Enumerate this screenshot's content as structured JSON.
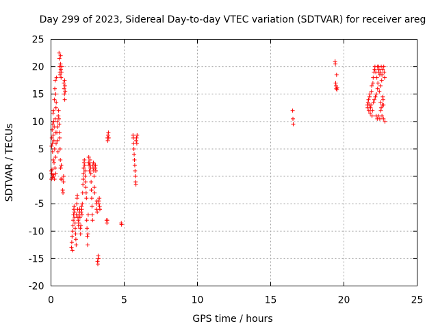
{
  "chart_data": {
    "type": "scatter",
    "title": "Day 299 of 2023, Sidereal Day-to-day VTEC variation (SDTVAR) for receiver areg",
    "xlabel": "GPS time / hours",
    "ylabel": "SDTVAR / TECUs",
    "xlim": [
      0,
      25
    ],
    "ylim": [
      -20,
      25
    ],
    "xticks": [
      0,
      5,
      10,
      15,
      20,
      25
    ],
    "yticks": [
      -20,
      -15,
      -10,
      -5,
      0,
      5,
      10,
      15,
      20,
      25
    ],
    "xtick_labels": [
      "0",
      "5",
      "10",
      "15",
      "20",
      "25"
    ],
    "ytick_labels": [
      "-20",
      "-15",
      "-10",
      "-5",
      "0",
      "5",
      "10",
      "15",
      "20",
      "25"
    ],
    "grid": true,
    "marker": "+",
    "color": "#ff0000",
    "series": [
      {
        "name": "SDTVAR",
        "points": [
          [
            0.02,
            1.0
          ],
          [
            0.03,
            -0.5
          ],
          [
            0.04,
            5.5
          ],
          [
            0.05,
            0.5
          ],
          [
            0.06,
            7.0
          ],
          [
            0.07,
            1.2
          ],
          [
            0.08,
            8.5
          ],
          [
            0.09,
            -0.2
          ],
          [
            0.1,
            6.0
          ],
          [
            0.11,
            4.5
          ],
          [
            0.12,
            9.5
          ],
          [
            0.13,
            0.3
          ],
          [
            0.14,
            11.5
          ],
          [
            0.15,
            7.5
          ],
          [
            0.16,
            3.0
          ],
          [
            0.17,
            12.0
          ],
          [
            0.18,
            0.0
          ],
          [
            0.19,
            10.0
          ],
          [
            0.2,
            6.5
          ],
          [
            0.21,
            2.5
          ],
          [
            0.22,
            9.0
          ],
          [
            0.23,
            14.0
          ],
          [
            0.24,
            -0.5
          ],
          [
            0.25,
            5.0
          ],
          [
            0.26,
            16.0
          ],
          [
            0.27,
            1.5
          ],
          [
            0.28,
            10.5
          ],
          [
            0.29,
            17.5
          ],
          [
            0.3,
            8.0
          ],
          [
            0.31,
            3.5
          ],
          [
            0.32,
            15.0
          ],
          [
            0.33,
            0.5
          ],
          [
            0.34,
            12.5
          ],
          [
            0.35,
            6.0
          ],
          [
            0.36,
            13.5
          ],
          [
            0.38,
            18.0
          ],
          [
            0.4,
            8.0
          ],
          [
            0.42,
            10.0
          ],
          [
            0.44,
            9.0
          ],
          [
            0.46,
            6.5
          ],
          [
            0.48,
            4.5
          ],
          [
            0.5,
            11.0
          ],
          [
            0.52,
            12.0
          ],
          [
            0.54,
            10.5
          ],
          [
            0.56,
            9.5
          ],
          [
            0.58,
            8.0
          ],
          [
            0.6,
            7.0
          ],
          [
            0.62,
            5.0
          ],
          [
            0.64,
            3.0
          ],
          [
            0.66,
            1.5
          ],
          [
            0.68,
            -0.5
          ],
          [
            0.7,
            2.0
          ],
          [
            0.55,
            22.5
          ],
          [
            0.57,
            21.5
          ],
          [
            0.59,
            20.0
          ],
          [
            0.61,
            19.0
          ],
          [
            0.63,
            18.5
          ],
          [
            0.65,
            20.5
          ],
          [
            0.67,
            19.5
          ],
          [
            0.69,
            18.0
          ],
          [
            0.72,
            19.0
          ],
          [
            0.74,
            20.0
          ],
          [
            0.66,
            22.0
          ],
          [
            0.76,
            -0.5
          ],
          [
            0.8,
            -2.5
          ],
          [
            0.82,
            -3.0
          ],
          [
            0.85,
            -1.0
          ],
          [
            0.86,
            0.0
          ],
          [
            0.88,
            17.0
          ],
          [
            0.9,
            16.0
          ],
          [
            0.92,
            15.0
          ],
          [
            0.94,
            14.0
          ],
          [
            0.93,
            17.5
          ],
          [
            0.95,
            16.5
          ],
          [
            0.97,
            15.5
          ],
          [
            1.4,
            -13.0
          ],
          [
            1.42,
            -12.0
          ],
          [
            1.44,
            -11.0
          ],
          [
            1.46,
            -13.5
          ],
          [
            1.48,
            -10.0
          ],
          [
            1.5,
            -9.0
          ],
          [
            1.52,
            -8.0
          ],
          [
            1.54,
            -7.0
          ],
          [
            1.56,
            -6.0
          ],
          [
            1.58,
            -5.5
          ],
          [
            1.6,
            -6.5
          ],
          [
            1.62,
            -7.5
          ],
          [
            1.64,
            -8.5
          ],
          [
            1.66,
            -9.5
          ],
          [
            1.68,
            -10.5
          ],
          [
            1.7,
            -11.5
          ],
          [
            1.72,
            -12.5
          ],
          [
            1.74,
            -7.0
          ],
          [
            1.76,
            -5.0
          ],
          [
            1.78,
            -4.0
          ],
          [
            1.8,
            -3.5
          ],
          [
            1.82,
            -6.0
          ],
          [
            1.84,
            -7.5
          ],
          [
            1.86,
            -8.0
          ],
          [
            1.88,
            -9.0
          ],
          [
            1.9,
            -8.5
          ],
          [
            1.92,
            -7.0
          ],
          [
            1.94,
            -6.5
          ],
          [
            1.96,
            -6.0
          ],
          [
            1.98,
            -7.5
          ],
          [
            2.0,
            -9.5
          ],
          [
            2.02,
            -10.5
          ],
          [
            2.04,
            -9.0
          ],
          [
            2.06,
            -6.5
          ],
          [
            2.08,
            -5.5
          ],
          [
            2.1,
            -6.0
          ],
          [
            2.12,
            -7.0
          ],
          [
            2.14,
            -5.0
          ],
          [
            2.16,
            -3.0
          ],
          [
            2.18,
            -1.5
          ],
          [
            2.2,
            -0.5
          ],
          [
            2.22,
            0.5
          ],
          [
            2.24,
            1.5
          ],
          [
            2.26,
            2.5
          ],
          [
            2.28,
            3.0
          ],
          [
            2.3,
            2.0
          ],
          [
            2.32,
            1.0
          ],
          [
            2.34,
            0.0
          ],
          [
            2.36,
            -1.0
          ],
          [
            2.38,
            -2.0
          ],
          [
            2.4,
            -3.0
          ],
          [
            2.42,
            -4.0
          ],
          [
            2.44,
            -8.0
          ],
          [
            2.46,
            -9.5
          ],
          [
            2.48,
            -11.0
          ],
          [
            2.5,
            -12.5
          ],
          [
            2.52,
            -10.5
          ],
          [
            2.54,
            -7.0
          ],
          [
            2.56,
            2.5
          ],
          [
            2.58,
            3.5
          ],
          [
            2.6,
            2.0
          ],
          [
            2.62,
            1.0
          ],
          [
            2.64,
            2.5
          ],
          [
            2.66,
            3.0
          ],
          [
            2.68,
            2.0
          ],
          [
            2.7,
            1.5
          ],
          [
            2.72,
            0.5
          ],
          [
            2.74,
            -1.0
          ],
          [
            2.76,
            -2.5
          ],
          [
            2.78,
            -4.0
          ],
          [
            2.8,
            -5.5
          ],
          [
            2.82,
            -7.0
          ],
          [
            2.84,
            -8.0
          ],
          [
            2.86,
            2.0
          ],
          [
            2.88,
            1.5
          ],
          [
            2.9,
            2.5
          ],
          [
            2.92,
            1.0
          ],
          [
            2.94,
            0.0
          ],
          [
            2.96,
            -2.0
          ],
          [
            2.98,
            -3.0
          ],
          [
            3.0,
            2.0
          ],
          [
            3.02,
            1.5
          ],
          [
            3.04,
            2.0
          ],
          [
            3.06,
            1.0
          ],
          [
            3.1,
            -5.0
          ],
          [
            3.12,
            -6.0
          ],
          [
            3.14,
            -4.5
          ],
          [
            3.16,
            -6.5
          ],
          [
            3.18,
            -15.5
          ],
          [
            3.2,
            -16.0
          ],
          [
            3.22,
            -14.5
          ],
          [
            3.24,
            -15.0
          ],
          [
            3.26,
            -4.5
          ],
          [
            3.28,
            -5.0
          ],
          [
            3.3,
            -4.0
          ],
          [
            3.32,
            -5.5
          ],
          [
            3.34,
            -6.0
          ],
          [
            3.8,
            -8.0
          ],
          [
            3.82,
            -8.5
          ],
          [
            3.84,
            -8.0
          ],
          [
            3.86,
            7.0
          ],
          [
            3.88,
            6.5
          ],
          [
            3.9,
            7.5
          ],
          [
            3.92,
            8.0
          ],
          [
            3.94,
            7.0
          ],
          [
            4.8,
            -8.5
          ],
          [
            4.82,
            -8.8
          ],
          [
            5.6,
            7.5
          ],
          [
            5.62,
            7.0
          ],
          [
            5.64,
            6.0
          ],
          [
            5.66,
            5.0
          ],
          [
            5.68,
            4.0
          ],
          [
            5.7,
            3.0
          ],
          [
            5.72,
            2.0
          ],
          [
            5.74,
            1.0
          ],
          [
            5.76,
            0.0
          ],
          [
            5.78,
            -1.0
          ],
          [
            5.8,
            -1.5
          ],
          [
            5.82,
            6.5
          ],
          [
            5.84,
            7.0
          ],
          [
            5.86,
            6.0
          ],
          [
            5.88,
            7.5
          ],
          [
            16.5,
            12.0
          ],
          [
            16.52,
            10.5
          ],
          [
            16.54,
            9.5
          ],
          [
            19.4,
            21.0
          ],
          [
            19.42,
            20.5
          ],
          [
            19.44,
            17.0
          ],
          [
            19.46,
            16.5
          ],
          [
            19.48,
            16.0
          ],
          [
            19.5,
            18.5
          ],
          [
            19.52,
            15.8
          ],
          [
            19.54,
            16.2
          ],
          [
            21.6,
            13.0
          ],
          [
            21.62,
            12.5
          ],
          [
            21.65,
            13.5
          ],
          [
            21.68,
            14.0
          ],
          [
            21.7,
            12.0
          ],
          [
            21.72,
            13.0
          ],
          [
            21.75,
            14.5
          ],
          [
            21.78,
            15.0
          ],
          [
            21.8,
            11.5
          ],
          [
            21.82,
            12.5
          ],
          [
            21.85,
            13.0
          ],
          [
            21.88,
            15.5
          ],
          [
            21.9,
            16.5
          ],
          [
            21.92,
            11.0
          ],
          [
            21.95,
            12.0
          ],
          [
            21.98,
            17.0
          ],
          [
            22.0,
            18.0
          ],
          [
            22.02,
            13.5
          ],
          [
            22.05,
            19.0
          ],
          [
            22.08,
            14.0
          ],
          [
            22.1,
            19.5
          ],
          [
            22.12,
            20.0
          ],
          [
            22.15,
            14.5
          ],
          [
            22.18,
            19.0
          ],
          [
            22.2,
            11.0
          ],
          [
            22.22,
            15.0
          ],
          [
            22.25,
            18.0
          ],
          [
            22.28,
            10.5
          ],
          [
            22.3,
            16.0
          ],
          [
            22.32,
            17.0
          ],
          [
            22.35,
            11.0
          ],
          [
            22.38,
            20.0
          ],
          [
            22.4,
            19.5
          ],
          [
            22.42,
            15.5
          ],
          [
            22.45,
            10.5
          ],
          [
            22.48,
            19.0
          ],
          [
            22.5,
            16.5
          ],
          [
            22.52,
            12.0
          ],
          [
            22.55,
            20.0
          ],
          [
            22.58,
            17.5
          ],
          [
            22.6,
            18.5
          ],
          [
            22.62,
            13.0
          ],
          [
            22.65,
            19.5
          ],
          [
            22.68,
            14.0
          ],
          [
            22.7,
            10.5
          ],
          [
            22.72,
            20.0
          ],
          [
            22.75,
            19.0
          ],
          [
            22.78,
            18.0
          ],
          [
            22.8,
            10.0
          ],
          [
            22.3,
            20.0
          ],
          [
            22.35,
            19.0
          ],
          [
            22.45,
            18.5
          ],
          [
            22.5,
            13.5
          ],
          [
            22.55,
            12.5
          ],
          [
            22.6,
            11.0
          ],
          [
            22.65,
            14.5
          ],
          [
            22.7,
            13.0
          ]
        ]
      }
    ]
  }
}
